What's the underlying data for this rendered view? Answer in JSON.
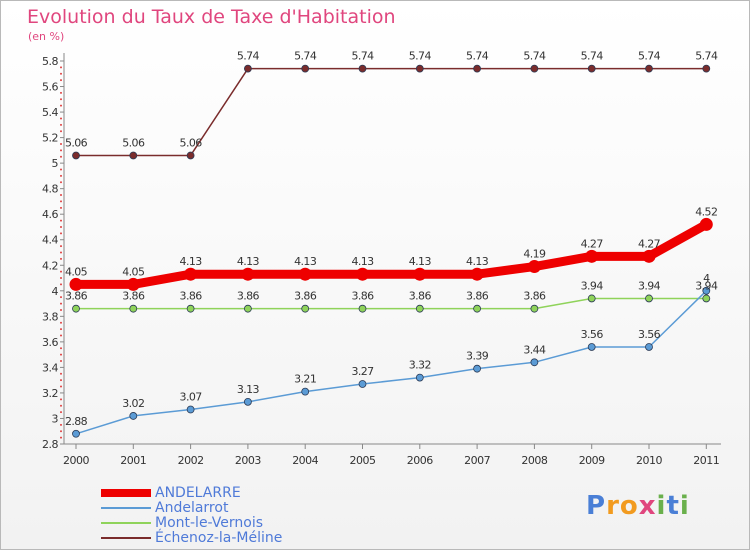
{
  "header": {
    "title": "Evolution du Taux de Taxe d'Habitation",
    "subtitle": "(en %)"
  },
  "logo": {
    "text": "Proxiti",
    "letters": [
      "P",
      "r",
      "o",
      "x",
      "i",
      "t",
      "i"
    ]
  },
  "chart_data": {
    "type": "line",
    "title": "Evolution du Taux de Taxe d'Habitation",
    "ylabel": "(en %)",
    "xlabel": "",
    "x": [
      "2000",
      "2001",
      "2002",
      "2003",
      "2004",
      "2005",
      "2006",
      "2007",
      "2008",
      "2009",
      "2010",
      "2011"
    ],
    "ylim": [
      2.8,
      5.8
    ],
    "yticks": [
      "2.8",
      "3",
      "3.2",
      "3.4",
      "3.6",
      "3.8",
      "4",
      "4.2",
      "4.4",
      "4.6",
      "4.8",
      "5",
      "5.2",
      "5.4",
      "5.6",
      "5.8"
    ],
    "grid": false,
    "legend_position": "bottom-left",
    "series": [
      {
        "name": "ANDELARRE",
        "color": "#ee0000",
        "values": [
          4.05,
          4.05,
          4.13,
          4.13,
          4.13,
          4.13,
          4.13,
          4.13,
          4.19,
          4.27,
          4.27,
          4.52
        ],
        "labels": [
          "4.05",
          "4.05",
          "4.13",
          "4.13",
          "4.13",
          "4.13",
          "4.13",
          "4.13",
          "4.19",
          "4.27",
          "4.27",
          "4.52"
        ],
        "emphasis": true
      },
      {
        "name": "Andelarrot",
        "color": "#5b9bd5",
        "values": [
          2.88,
          3.02,
          3.07,
          3.13,
          3.21,
          3.27,
          3.32,
          3.39,
          3.44,
          3.56,
          3.56,
          4.0
        ],
        "labels": [
          "2.88",
          "3.02",
          "3.07",
          "3.13",
          "3.21",
          "3.27",
          "3.32",
          "3.39",
          "3.44",
          "3.56",
          "3.56",
          "4"
        ]
      },
      {
        "name": "Mont-le-Vernois",
        "color": "#8fd35a",
        "values": [
          3.86,
          3.86,
          3.86,
          3.86,
          3.86,
          3.86,
          3.86,
          3.86,
          3.86,
          3.94,
          3.94,
          3.94
        ],
        "labels": [
          "3.86",
          "3.86",
          "3.86",
          "3.86",
          "3.86",
          "3.86",
          "3.86",
          "3.86",
          "3.86",
          "3.94",
          "3.94",
          "3.94"
        ]
      },
      {
        "name": "Échenoz-la-Méline",
        "color": "#7a2c2c",
        "values": [
          5.06,
          5.06,
          5.06,
          5.74,
          5.74,
          5.74,
          5.74,
          5.74,
          5.74,
          5.74,
          5.74,
          5.74
        ],
        "labels": [
          "5.06",
          "5.06",
          "5.06",
          "5.74",
          "5.74",
          "5.74",
          "5.74",
          "5.74",
          "5.74",
          "5.74",
          "5.74",
          "5.74"
        ]
      }
    ]
  }
}
